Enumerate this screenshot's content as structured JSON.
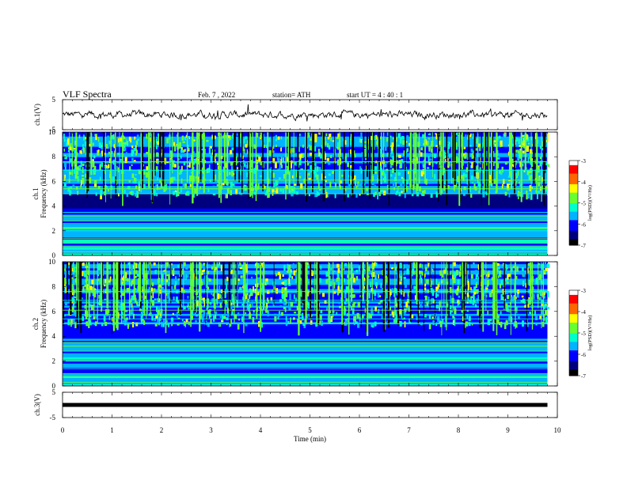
{
  "header": {
    "title": "VLF  Spectra",
    "date": "Feb. 7  , 2022",
    "station": "station= ATH",
    "start_ut": "start  UT  =   4  : 40 : 1"
  },
  "colors": {
    "scale": [
      "#000000",
      "#00007f",
      "#0000ff",
      "#00b4ff",
      "#00ffcc",
      "#66ff33",
      "#ffff00",
      "#ff6600",
      "#ff0000",
      "#ffffff"
    ]
  },
  "chart_data": [
    {
      "type": "line",
      "name": "ch1-waveform",
      "ylabel": "ch.1(V)",
      "ylim": [
        -5,
        5
      ],
      "yticks": [
        "5",
        "-5"
      ],
      "xlim": [
        0,
        10
      ],
      "note": "noisy waveform near 0 V"
    },
    {
      "type": "heatmap",
      "name": "ch1-spectrogram",
      "ylabel": "ch.1\nFrequency  (kHz)",
      "ylim": [
        0,
        10
      ],
      "yticks": [
        "0",
        "2",
        "4",
        "6",
        "8",
        "10"
      ],
      "xlim": [
        0,
        10
      ],
      "colorbar": {
        "label": "log(PSD)(V²/Hz)",
        "ticks": [
          "-3",
          "-4",
          "-5",
          "-6",
          "-7"
        ],
        "range": [
          -7,
          -3
        ]
      }
    },
    {
      "type": "heatmap",
      "name": "ch2-spectrogram",
      "ylabel": "ch.2\nFrequency  (kHz)",
      "ylim": [
        0,
        10
      ],
      "yticks": [
        "0",
        "2",
        "4",
        "6",
        "8",
        "10"
      ],
      "xlim": [
        0,
        10
      ],
      "colorbar": {
        "label": "log(PSD)(V²/Hz)",
        "ticks": [
          "-3",
          "-4",
          "-5",
          "-6",
          "-7"
        ],
        "range": [
          -7,
          -3
        ]
      }
    },
    {
      "type": "line",
      "name": "ch3-waveform",
      "ylabel": "ch.3(V)",
      "ylim": [
        -5,
        5
      ],
      "yticks": [
        "5",
        "-5"
      ],
      "xlim": [
        0,
        10
      ],
      "note": "flat line near 0 V"
    }
  ],
  "xaxis": {
    "label": "Time  (min)",
    "ticks": [
      "0",
      "1",
      "2",
      "3",
      "4",
      "5",
      "6",
      "7",
      "8",
      "9",
      "10"
    ],
    "range": [
      0,
      10
    ],
    "data_end": 9.8
  }
}
